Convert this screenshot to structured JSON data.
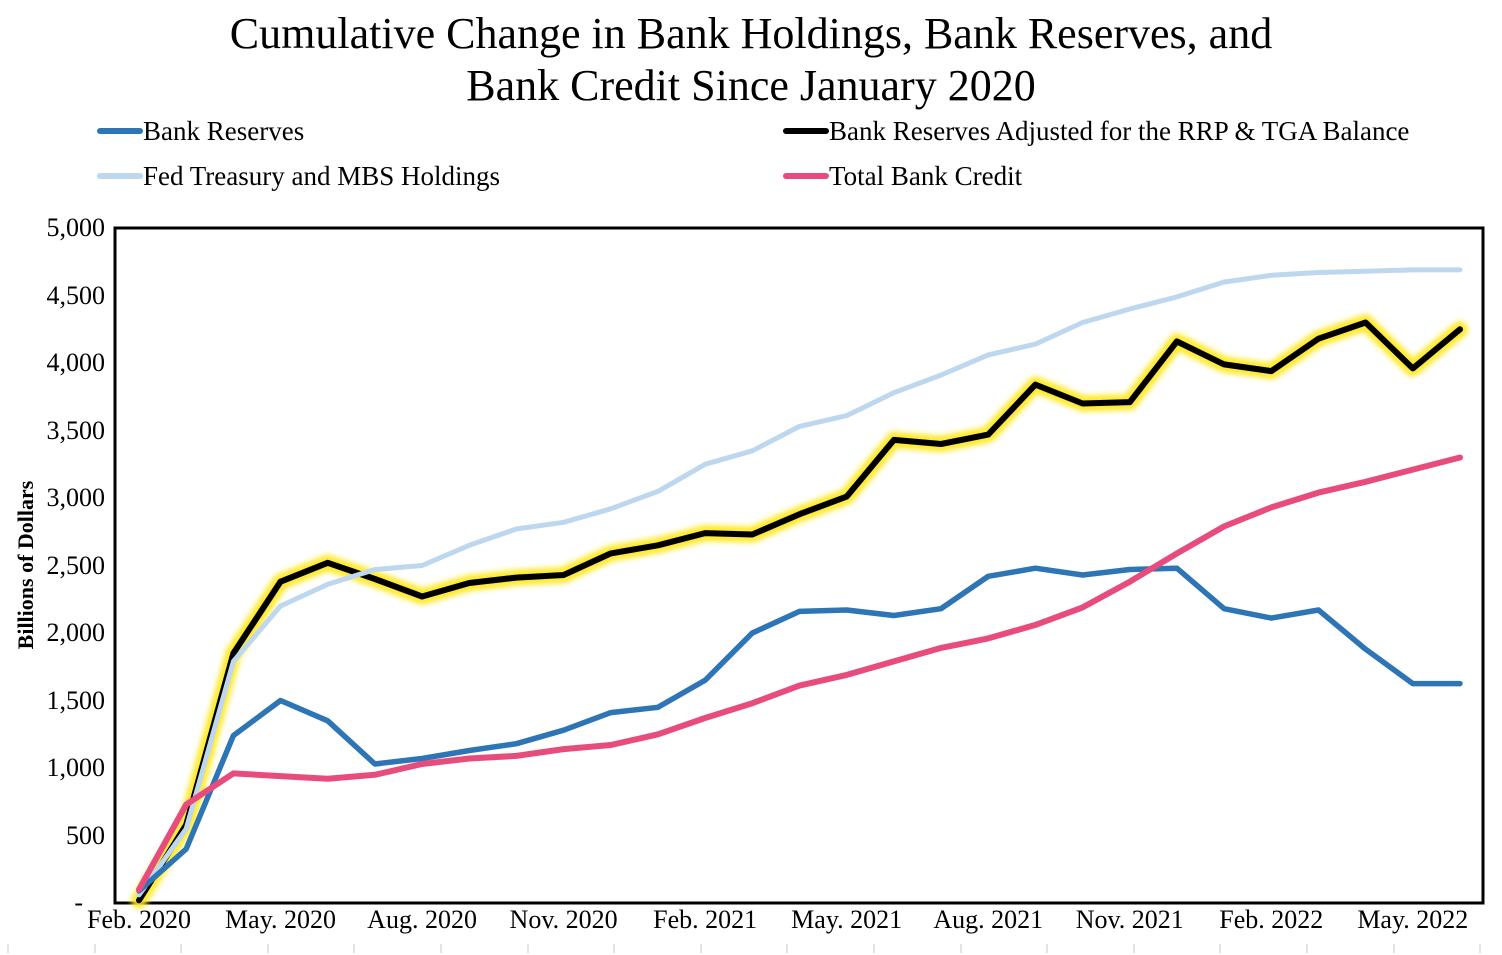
{
  "page": {
    "background": "#ffffff"
  },
  "title_lines": {
    "line1": "Cumulative Change in Bank Holdings, Bank Reserves, and",
    "line2": "Bank Credit Since January 2020"
  },
  "chart_data": {
    "type": "line",
    "title": "Cumulative Change in Bank Holdings, Bank Reserves, and Bank Credit Since January 2020",
    "xlabel": "",
    "ylabel": "Billions of Dollars",
    "ylim": [
      0,
      5000
    ],
    "ytick_step": 500,
    "ytick_labels": [
      "5,000",
      "4,500",
      "4,000",
      "3,500",
      "3,000",
      "2,500",
      "2,000",
      "1,500",
      "1,000",
      "500",
      "-"
    ],
    "xtick_labels": [
      "Feb. 2020",
      "May. 2020",
      "Aug. 2020",
      "Nov. 2020",
      "Feb. 2021",
      "May. 2021",
      "Aug. 2021",
      "Nov. 2021",
      "Feb. 2022",
      "May. 2022"
    ],
    "xtick_every": 3,
    "grid": false,
    "legend_position": "top",
    "categories": [
      "Feb. 2020",
      "Mar. 2020",
      "Apr. 2020",
      "May. 2020",
      "Jun. 2020",
      "Jul. 2020",
      "Aug. 2020",
      "Sep. 2020",
      "Oct. 2020",
      "Nov. 2020",
      "Dec. 2020",
      "Jan. 2021",
      "Feb. 2021",
      "Mar. 2021",
      "Apr. 2021",
      "May. 2021",
      "Jun. 2021",
      "Jul. 2021",
      "Aug. 2021",
      "Sep. 2021",
      "Oct. 2021",
      "Nov. 2021",
      "Dec. 2021",
      "Jan. 2022",
      "Feb. 2022",
      "Mar. 2022",
      "Apr. 2022",
      "May. 2022",
      "Jun. 2022"
    ],
    "series": [
      {
        "name": "Bank Reserves",
        "color": "#2E75B6",
        "stroke_width": 5.5,
        "values": [
          90,
          400,
          1240,
          1500,
          1350,
          1030,
          1070,
          1130,
          1180,
          1280,
          1410,
          1450,
          1650,
          2000,
          2160,
          2170,
          2130,
          2180,
          2420,
          2480,
          2430,
          2470,
          2480,
          2180,
          2110,
          2170,
          1880,
          1625,
          1625
        ]
      },
      {
        "name": "Bank Reserves Adjusted for the RRP & TGA Balance",
        "color": "#000000",
        "stroke_width": 6,
        "glow_color": "#FFE81A",
        "values": [
          20,
          580,
          1850,
          2380,
          2520,
          2400,
          2270,
          2370,
          2410,
          2430,
          2590,
          2650,
          2740,
          2730,
          2880,
          3010,
          3430,
          3400,
          3470,
          3840,
          3700,
          3710,
          4160,
          3990,
          3940,
          4180,
          4300,
          3960,
          4250
        ]
      },
      {
        "name": "Fed Treasury and MBS Holdings",
        "color": "#BDD7EE",
        "stroke_width": 5,
        "values": [
          60,
          550,
          1790,
          2200,
          2360,
          2470,
          2500,
          2650,
          2770,
          2820,
          2920,
          3050,
          3250,
          3350,
          3530,
          3610,
          3780,
          3910,
          4060,
          4140,
          4300,
          4400,
          4490,
          4600,
          4650,
          4670,
          4680,
          4690,
          4690
        ]
      },
      {
        "name": "Total Bank Credit",
        "color": "#E84C7D",
        "stroke_width": 6,
        "values": [
          100,
          730,
          960,
          940,
          920,
          950,
          1030,
          1070,
          1090,
          1140,
          1170,
          1250,
          1370,
          1480,
          1610,
          1690,
          1790,
          1890,
          1960,
          2060,
          2190,
          2380,
          2590,
          2790,
          2930,
          3040,
          3120,
          3210,
          3300
        ]
      }
    ]
  }
}
